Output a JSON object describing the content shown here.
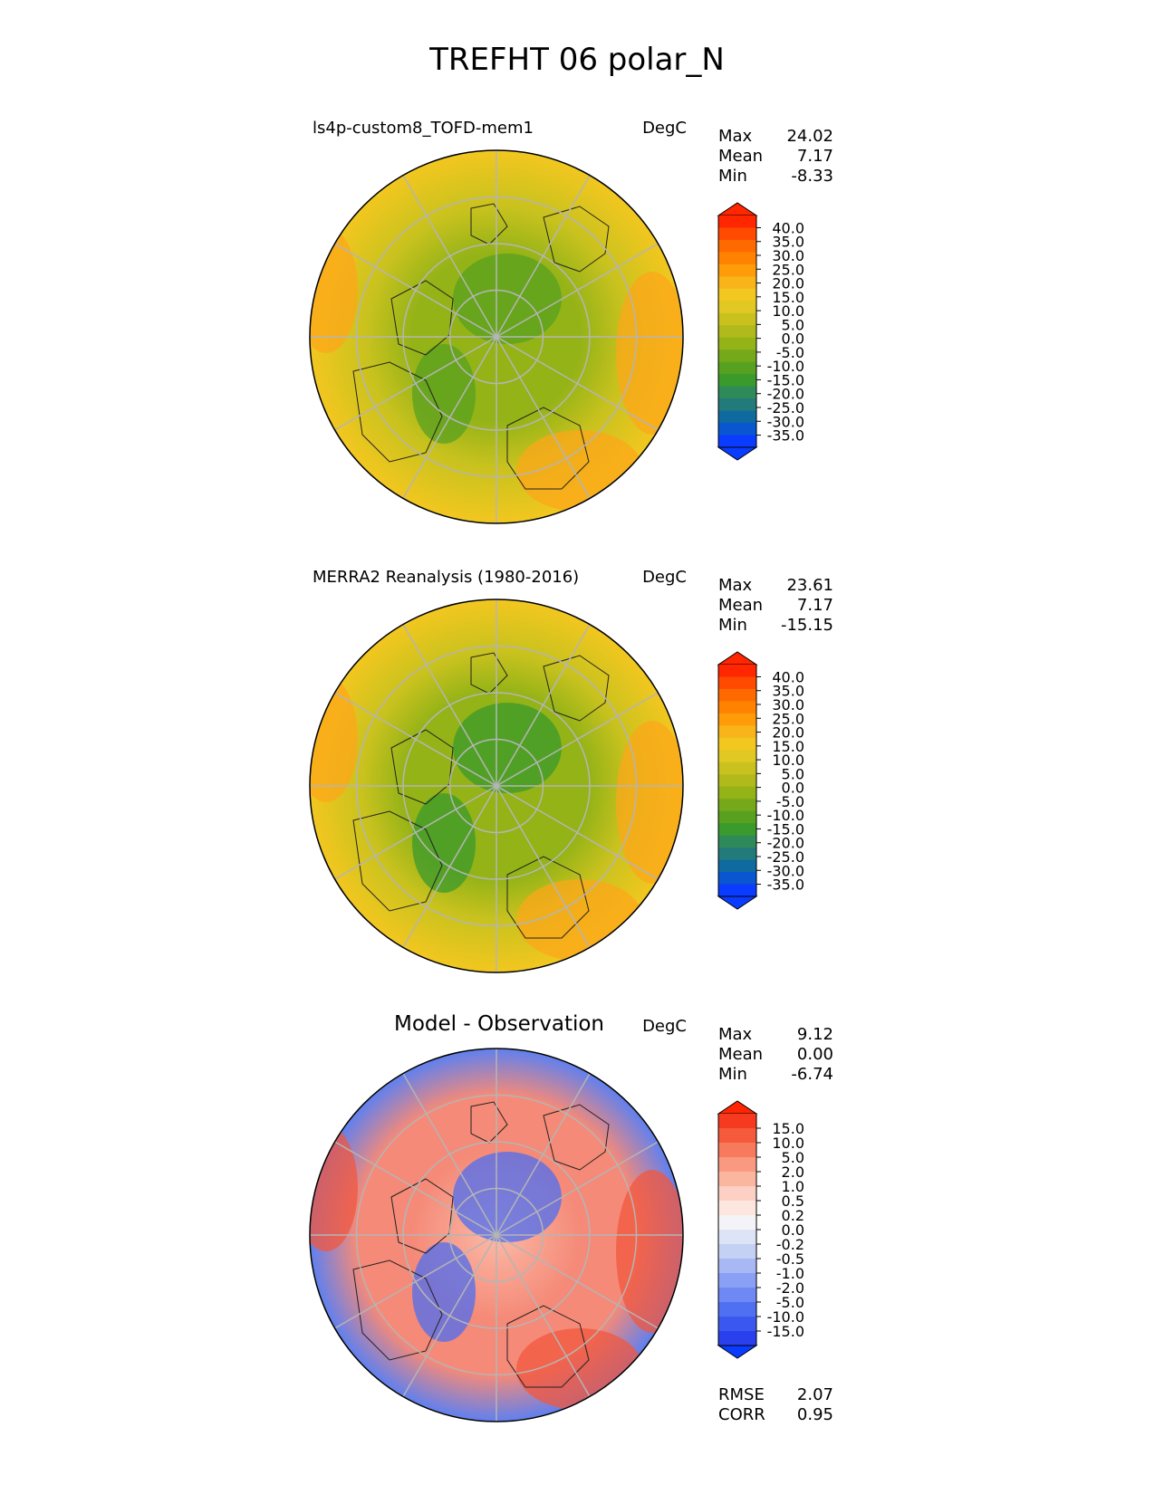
{
  "figure": {
    "title": "TREFHT 06 polar_N"
  },
  "panels": [
    {
      "id": "test",
      "left_title": "ls4p-custom8_TOFD-mem1",
      "center_title": "",
      "units": "DegC",
      "stats": [
        {
          "label": "Max",
          "value": "24.02"
        },
        {
          "label": "Mean",
          "value": "7.17"
        },
        {
          "label": "Min",
          "value": "-8.33"
        }
      ],
      "colorbar": {
        "ticks": [
          "40.0",
          "35.0",
          "30.0",
          "25.0",
          "20.0",
          "15.0",
          "10.0",
          "5.0",
          "0.0",
          "-5.0",
          "-10.0",
          "-15.0",
          "-20.0",
          "-25.0",
          "-30.0",
          "-35.0"
        ],
        "colors": [
          "#ff2600",
          "#ff4a00",
          "#ff6a00",
          "#ff8200",
          "#ff9c08",
          "#f8b418",
          "#f2c71f",
          "#e1c822",
          "#c9c21e",
          "#b0ba1a",
          "#94b317",
          "#76a91a",
          "#58a020",
          "#3b9a2c",
          "#2f8a5a",
          "#237a7a",
          "#0f6aa0",
          "#0a55d0",
          "#0a3cff"
        ],
        "over_color": "#ff2600",
        "under_color": "#0a3cff"
      },
      "map_palette": {
        "outer": "#f2c71f",
        "middle": "#c9c21e",
        "inner": "#94b317",
        "hot": "#fca71a",
        "cold": "#58a020"
      }
    },
    {
      "id": "reference",
      "left_title": "MERRA2 Reanalysis (1980-2016)",
      "center_title": "",
      "units": "DegC",
      "stats": [
        {
          "label": "Max",
          "value": "23.61"
        },
        {
          "label": "Mean",
          "value": "7.17"
        },
        {
          "label": "Min",
          "value": "-15.15"
        }
      ],
      "colorbar": {
        "ticks": [
          "40.0",
          "35.0",
          "30.0",
          "25.0",
          "20.0",
          "15.0",
          "10.0",
          "5.0",
          "0.0",
          "-5.0",
          "-10.0",
          "-15.0",
          "-20.0",
          "-25.0",
          "-30.0",
          "-35.0"
        ],
        "colors": [
          "#ff2600",
          "#ff4a00",
          "#ff6a00",
          "#ff8200",
          "#ff9c08",
          "#f8b418",
          "#f2c71f",
          "#e1c822",
          "#c9c21e",
          "#b0ba1a",
          "#94b317",
          "#76a91a",
          "#58a020",
          "#3b9a2c",
          "#2f8a5a",
          "#237a7a",
          "#0f6aa0",
          "#0a55d0",
          "#0a3cff"
        ],
        "over_color": "#ff2600",
        "under_color": "#0a3cff"
      },
      "map_palette": {
        "outer": "#f2c71f",
        "middle": "#c9c21e",
        "inner": "#94b317",
        "hot": "#fca71a",
        "cold": "#3b9a2c"
      }
    },
    {
      "id": "diff",
      "left_title": "",
      "center_title": "Model - Observation",
      "units": "DegC",
      "stats": [
        {
          "label": "Max",
          "value": "9.12"
        },
        {
          "label": "Mean",
          "value": "0.00"
        },
        {
          "label": "Min",
          "value": "-6.74"
        }
      ],
      "extra_stats": [
        {
          "label": "RMSE",
          "value": "2.07"
        },
        {
          "label": "CORR",
          "value": "0.95"
        }
      ],
      "colorbar": {
        "ticks": [
          "15.0",
          "10.0",
          "5.0",
          "2.0",
          "1.0",
          "0.5",
          "0.2",
          "0.0",
          "-0.2",
          "-0.5",
          "-1.0",
          "-2.0",
          "-5.0",
          "-10.0",
          "-15.0"
        ],
        "colors": [
          "#f63a1f",
          "#f65a3d",
          "#f87a5c",
          "#f99a80",
          "#fbb6a0",
          "#fcd0c2",
          "#fde6de",
          "#f4f4f8",
          "#dde4f6",
          "#c4d0f4",
          "#a8b8f4",
          "#8aa0f4",
          "#6e88f4",
          "#5070f2",
          "#3a58f0",
          "#2a40ee"
        ],
        "over_color": "#ff2600",
        "under_color": "#0a3cff"
      },
      "map_palette": {
        "outer": "#5f80f0",
        "middle": "#f58a78",
        "inner": "#fbb9a6",
        "hot": "#f2573d",
        "cold": "#4d6ef0"
      }
    }
  ]
}
